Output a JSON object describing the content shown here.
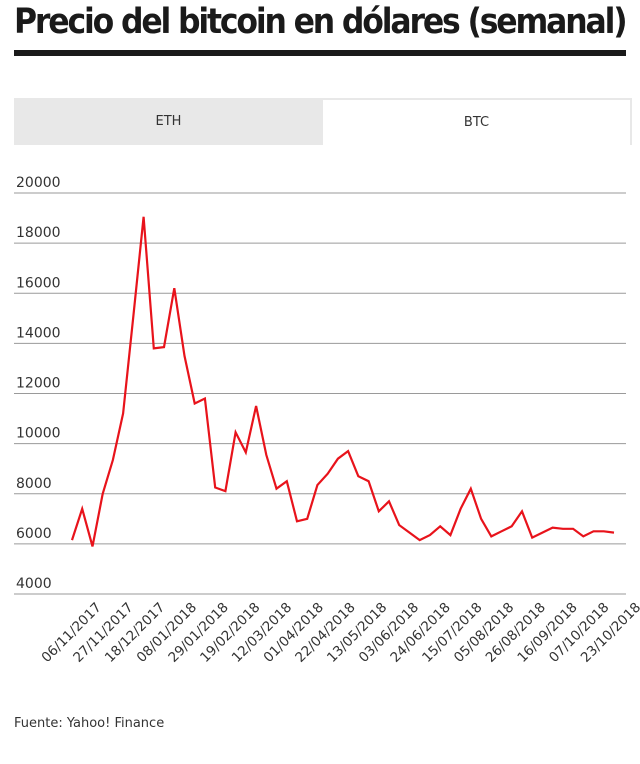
{
  "header": {
    "title": "Precio del bitcoin en dólares (semanal)"
  },
  "tabs": [
    {
      "label": "ETH",
      "active": false
    },
    {
      "label": "BTC",
      "active": true
    }
  ],
  "source": "Fuente:  Yahoo! Finance",
  "colors": {
    "line": "#e8131b",
    "grid": "#9a9a9a",
    "tab_bg": "#e8e8e8",
    "text": "#333333"
  },
  "chart_data": {
    "type": "line",
    "title": "",
    "xlabel": "",
    "ylabel": "",
    "ylim": [
      4000,
      20000
    ],
    "yticks": [
      4000,
      6000,
      8000,
      10000,
      12000,
      14000,
      16000,
      18000,
      20000
    ],
    "x_tick_labels": [
      "06/11/2017",
      "27/11/2017",
      "18/12/2017",
      "08/01/2018",
      "29/01/2018",
      "19/02/2018",
      "12/03/2018",
      "01/04/2018",
      "22/04/2018",
      "13/05/2018",
      "03/06/2018",
      "24/06/2018",
      "15/07/2018",
      "05/08/2018",
      "26/08/2018",
      "16/09/2018",
      "07/10/2018",
      "23/10/2018"
    ],
    "grid": true,
    "series": [
      {
        "values": [
          6150,
          7400,
          5900,
          8000,
          9350,
          11200,
          15100,
          19050,
          13800,
          13850,
          16200,
          13500,
          11600,
          11800,
          8250,
          8100,
          10450,
          9650,
          11500,
          9550,
          8200,
          8500,
          6900,
          7000,
          8350,
          8800,
          9400,
          9700,
          8700,
          8500,
          7300,
          7700,
          6750,
          6450,
          6150,
          6350,
          6700,
          6350,
          7400,
          8200,
          7000,
          6300,
          6500,
          6700,
          7300,
          6250,
          6450,
          6650,
          6600,
          6600,
          6300,
          6500,
          6500,
          6450
        ]
      }
    ]
  }
}
